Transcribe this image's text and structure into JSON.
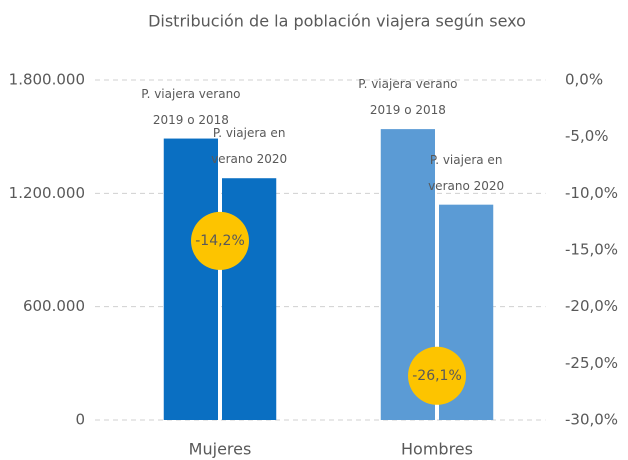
{
  "chart_data": {
    "type": "bar",
    "title": "Distribución de la población viajera según sexo",
    "categories": [
      "Mujeres",
      "Hombres"
    ],
    "category_colors": [
      "#0a6fc2",
      "#5b9bd5"
    ],
    "series": [
      {
        "name": "P. viajera verano 2019 o 2018",
        "values": [
          1490000,
          1540000
        ]
      },
      {
        "name": "P. viajera en verano 2020",
        "values": [
          1280000,
          1140000
        ]
      }
    ],
    "change": {
      "axis": "y2",
      "color": "#fdc400",
      "values": [
        -14.2,
        -26.1
      ],
      "value_labels": [
        "-14,2%",
        "-26,1%"
      ]
    },
    "ylim": [
      0,
      1800000
    ],
    "yticks": [
      0,
      {
        "value": 600000,
        "label": "600.000"
      },
      {
        "value": 1200000,
        "label": "1.200.000"
      },
      {
        "value": 1800000,
        "label": "1.800.000"
      }
    ],
    "y2lim": [
      -30,
      0
    ],
    "y2ticks": [
      {
        "value": 0,
        "label": "0,0%"
      },
      {
        "value": -5,
        "label": "-5,0%"
      },
      {
        "value": -10,
        "label": "-10,0%"
      },
      {
        "value": -15,
        "label": "-15,0%"
      },
      {
        "value": -20,
        "label": "-20,0%"
      },
      {
        "value": -25,
        "label": "-25,0%"
      },
      {
        "value": -30,
        "label": "-30,0%"
      }
    ],
    "grid": true
  }
}
